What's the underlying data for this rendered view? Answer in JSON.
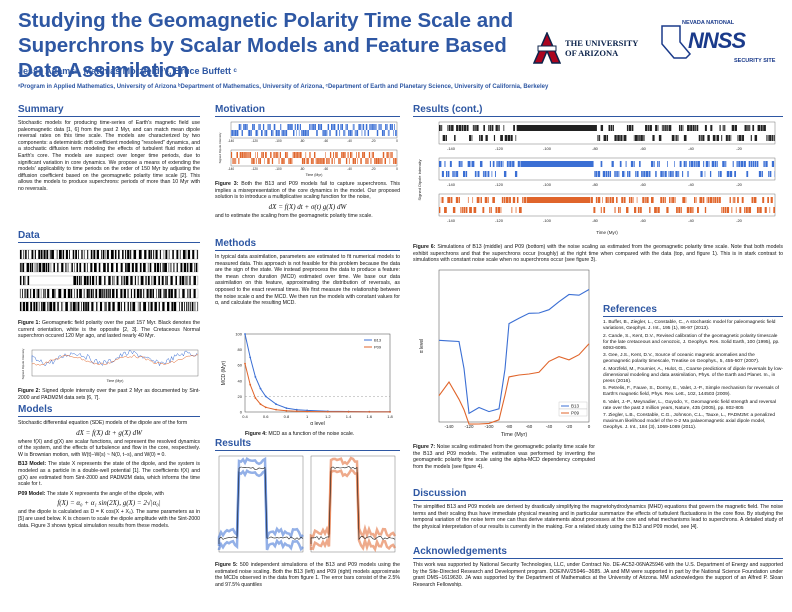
{
  "header": {
    "title": "Studying the Geomagnetic Polarity Time Scale and Superchrons by Scalar Models and Feature Based Data Assimilation",
    "authors": "Jesse Adamsᵃ, Matthias Morzfeldᵇʼᶜ, Bruce Buffett ᶜ",
    "affiliations": "ᵃProgram in Applied Mathematics, University of Arizona ᵇDepartment of Mathematics, University of Arizona, ᶜDepartment of Earth and Planetary Science, University of California, Berkeley",
    "logo_ua": [
      "THE UNIVERSITY",
      "OF ARIZONA"
    ],
    "logo_nnss": {
      "top": "NEVADA NATIONAL",
      "big": "NNSS",
      "bottom": "SECURITY SITE"
    }
  },
  "summary": {
    "heading": "Summary",
    "text": "Stochastic models for producing time-series of Earth's magnetic field use paleomagnetic data [1, 6] from the past 2 Myr, and can match mean dipole reversal rates on this time scale. The models are characterized by two components: a deterministic drift coefficient modeling \"resolved\" dynamics, and a stochastic diffusion term modeling the effects of turbulent fluid motion at Earth's core. The models are suspect over longer time periods, due to significant variation in core dynamics. We propose a means of extending the models' applicability to time periods on the order of 150 Myr by adjusting the diffusion coefficient based on the geomagnetic polarity time scale [2]. This allows the models to produce superchrons: periods of more than 10 Myr with no reversals."
  },
  "data_section": {
    "heading": "Data",
    "fig1_caption_bold": "Figure 1:",
    "fig1_caption": " Geomagnetic field polarity over the past 157 Myr. Black denotes the current orientation, white is the opposite [2, 3]. The Cretaceous Normal superchron occured 120 Myr ago, and lasted nearly 40 Myr.",
    "fig2_caption_bold": "Figure 2:",
    "fig2_caption": " Signed dipole intensity over the past 2 Myr as documented by Sint-2000 and PADM2M data sets [6, 7].",
    "fig2_ylabel": "Signed Dipole Intensity",
    "fig2_xlabel": "Time (Myr)"
  },
  "models": {
    "heading": "Models",
    "intro": "Stochastic differential equation (SDE) models of the dipole are of the form",
    "eq1": "dX = f(X) dt + g(X) dW",
    "para1": "where f(X) and g(X) are scalar functions, and represent the resolved dynamics of the system, and the effects of turbulence and flow in the core, respectively. W is Brownian motion, with W(t)−W(s) ~ N(0, t−s), and W(0) = 0.",
    "b13_bold": "B13 Model:",
    "b13": " The state X represents the state of the dipole, and the system is modeled as a particle in a double-well potential [1]. The coefficients f(X) and g(X) are estimated from Sint-2000 and PADM2M data, which informs the time scale for t.",
    "p09_bold": "P09 Model:",
    "p09": " The state X represents the angle of the dipole, with",
    "eq2": "f(X) = α₀ + α₁ sin(2X),      g(X) = 2√|α₀|",
    "para2": "and the dipole is calculated as D = K cos(X + X₀). The same parameters as in [5] are used below. K is chosen to scale the dipole amplitude with the Sint-2000 data. Figure 3 shows typical simulation results from these models."
  },
  "motivation": {
    "heading": "Motivation",
    "fig3_caption_bold": "Figure 3:",
    "fig3_caption": " Both the B13 and P09 models fail to capture superchrons. This implies a misrepresentation of the core dynamics in the model. Our proposed solution is to introduce a multiplicative scaling function for the noise,",
    "eq3": "dX = f(X) dt + σ(t) g(X) dW",
    "after": "and to estimate the scaling from the geomagnetic polarity time scale.",
    "fig3_ylabel": "Signed Dipole Intensity",
    "fig3_xlabel": "Time (Myr)",
    "fig3_xticks": [
      "-140",
      "-120",
      "-100",
      "-80",
      "-60",
      "-40",
      "-20",
      "0"
    ]
  },
  "methods": {
    "heading": "Methods",
    "text": "In typical data assimilation, parameters are estimated to fit numerical models to measured data. This approach is not feasible for this problem because the data are the sign of the state. We instead preprocess the data to produce a feature: the mean chron duration (MCD) estimated over time. We base our data assimilation on this feature, approximating the distribution of reversals, as opposed to the exact reversal times. We first measure the relationship between the noise scale α and the MCD. We then run the models with constant values for α, and calculate the resulting MCD.",
    "fig4_caption_bold": "Figure 4:",
    "fig4_caption": " MCD as a function of the noise scale."
  },
  "chart_data": [
    {
      "type": "line",
      "title": "",
      "xlabel": "α level",
      "ylabel": "MCD (Myr)",
      "x": [
        0.4,
        0.45,
        0.5,
        0.55,
        0.6,
        0.7,
        0.8,
        0.9,
        1.0,
        1.2,
        1.4,
        1.6,
        1.8
      ],
      "series": [
        {
          "name": "B13",
          "values": [
            100,
            70,
            45,
            30,
            20,
            10,
            5,
            3,
            2,
            1,
            0.6,
            0.4,
            0.3
          ],
          "color": "#3b6fd4"
        },
        {
          "name": "P09",
          "values": [
            62,
            35,
            18,
            10,
            6,
            3,
            1.5,
            1,
            0.6,
            0.3,
            0.2,
            0.15,
            0.1
          ],
          "color": "#e0652b"
        }
      ],
      "xlim": [
        0.4,
        1.8
      ],
      "ylim": [
        0,
        100
      ],
      "xticks": [
        "0.4",
        "0.6",
        "0.8",
        "1",
        "1.2",
        "1.4",
        "1.6",
        "1.8"
      ],
      "yticks": [
        "0",
        "20",
        "40",
        "60",
        "80",
        "100"
      ],
      "legend": "top-right"
    },
    {
      "type": "line",
      "title": "",
      "xlabel": "Time (Myr)",
      "ylabel": "α level",
      "x": [
        -150,
        -140,
        -130,
        -125,
        -120,
        -110,
        -100,
        -90,
        -84,
        -80,
        -70,
        -60,
        -50,
        -40,
        -30,
        -20,
        -10,
        0
      ],
      "series": [
        {
          "name": "B13",
          "values": [
            0.72,
            0.74,
            0.7,
            0.62,
            0.45,
            0.44,
            0.44,
            0.45,
            0.6,
            0.78,
            0.8,
            0.82,
            0.84,
            0.86,
            0.88,
            0.9,
            0.92,
            0.94
          ],
          "color": "#3b6fd4"
        },
        {
          "name": "P09",
          "values": [
            0.52,
            0.54,
            0.5,
            0.46,
            0.4,
            0.4,
            0.4,
            0.41,
            0.5,
            0.56,
            0.57,
            0.58,
            0.6,
            0.62,
            0.64,
            0.66,
            0.68,
            0.7
          ],
          "color": "#e0652b"
        }
      ],
      "xlim": [
        -150,
        0
      ],
      "ylim": [
        0.4,
        1.0
      ],
      "xticks": [
        "-140",
        "-120",
        "-100",
        "-80",
        "-60",
        "-40",
        "-20",
        "0"
      ],
      "legend": "bottom-right"
    }
  ],
  "results_left": {
    "heading": "Results",
    "fig5_caption_bold": "Figure 5:",
    "fig5_caption": " 500 independent simulations of the B13 and P09 models using the estimated noise scaling. Both the B13 (left) and P09 (right) models approximate the MCDs observed in the data from figure 1. The error bars consist of the 2.5% and 97.5% quantiles"
  },
  "results_cont": {
    "heading": "Results (cont.)",
    "fig6_caption_bold": "Figure 6:",
    "fig6_caption": " Simulations of B13 (middle) and P09 (bottom) with the noise scaling as estimated from the geomagnetic polarity time scale. Note that both models exhibit superchrons and that the superchrons occur (roughly) at the right time when compared with the data (top, and figure 1). This is in stark contrast to simulations with constant noise scale when no superchrons occur (see figure 3).",
    "fig6_ylabel": "Signed Dipole Intensity",
    "fig6_xlabel": "Time (Myr)",
    "fig6_xticks": [
      "-140",
      "-120",
      "-100",
      "-80",
      "-60",
      "-40",
      "-20",
      "0"
    ],
    "fig7_caption_bold": "Figure 7:",
    "fig7_caption": " Noise scaling estimated from the geomagnetic polarity time scale for the B13 and P09 models. The estimation was performed by inverting the geomagnetic polarity time scale using the alpha-MCD dependency computed from the models (see figure 4)."
  },
  "references": {
    "heading": "References",
    "items": [
      "1. Buffet, B., Ziegler, L., Constable, C., A stochastic model for paleomagnetic field variations, Geophys. J. Int., 195 (1), 86-97 (2013).",
      "2. Cande, S., Kent, D.V., Revised calibration of the geomagnetic polarity timescale for the late cretaceous and cenozoic, J. Geophys. Res. Solid Earth, 100 (1995), pp. 6093-6095.",
      "3. Gee, J.S., Kent, D.V., Source of oceanic magnetic anomalies and the geomagnetic polarity timescale, Treatise on Geophys., 5, 455-507 (2007).",
      "4. Morzfeld, M., Fournier, A., Hulot, G., Coarse predictions of dipole reversals by low-dimensional modeling and data assimilation, Phys. of the Earth and Planet. In., in press (2016).",
      "5. Petrelis, F., Fauve, S., Dormy, E., Valet, J.-P., Simple mechanism for reversals of Earth's magnetic field, Phys. Rev. Lett., 102, 144503 (2009).",
      "6. Valet, J.-P., Meynadier, L., Guyodo, Y., Geomagnetic field strength and reversal rate over the past 2 million years, Nature, 435 (2005), pp. 802-805",
      "7. Ziegler, L.B., Constable, C.G., Johnson, C.L., Tauxe, L., PADM2M: a penalized maximum likelihood model of the 0-2 Ma palaeomagnetic axial dipole model, Geophys. J. Int., 184 (3), 1069-1089 (2011)."
    ]
  },
  "discussion": {
    "heading": "Discussion",
    "text": "The simplified B13 and P09 models are derived by drastically simplifying the magnetohydrodynamics (MHD) equations that govern the magnetic field. The noise terms and their scaling thus have immediate physical meaning and in particular summarize the effects of turbulent fluctuations in the core flow. By studying the temporal variation of the noise term one can thus derive statements about processes at the core and what mechanisms lead to superchrons. A detailed study of the physical interpretation of our results is currently in the making. For a related study using the B13 and P09 model, see [4]."
  },
  "acknowledgements": {
    "heading": "Acknowledgements",
    "text": "This work was supported by National Security Technologies, LLC, under Contract No. DE-AC52-06NA25946 with the U.S. Department of Energy and supported by the Site-Directed Research and Development program. DOE/NV/25946--3685. JA and MM were supported in part by the National Science Foundation under grant DMS−1619630. JA was supported by the Department of Mathematics at the University of Arizona. MM acknowledges the support of an Alfred P. Sloan Research Fellowship."
  },
  "colors": {
    "accent": "#2e57a3",
    "b13": "#3b6fd4",
    "p09": "#e0652b"
  }
}
